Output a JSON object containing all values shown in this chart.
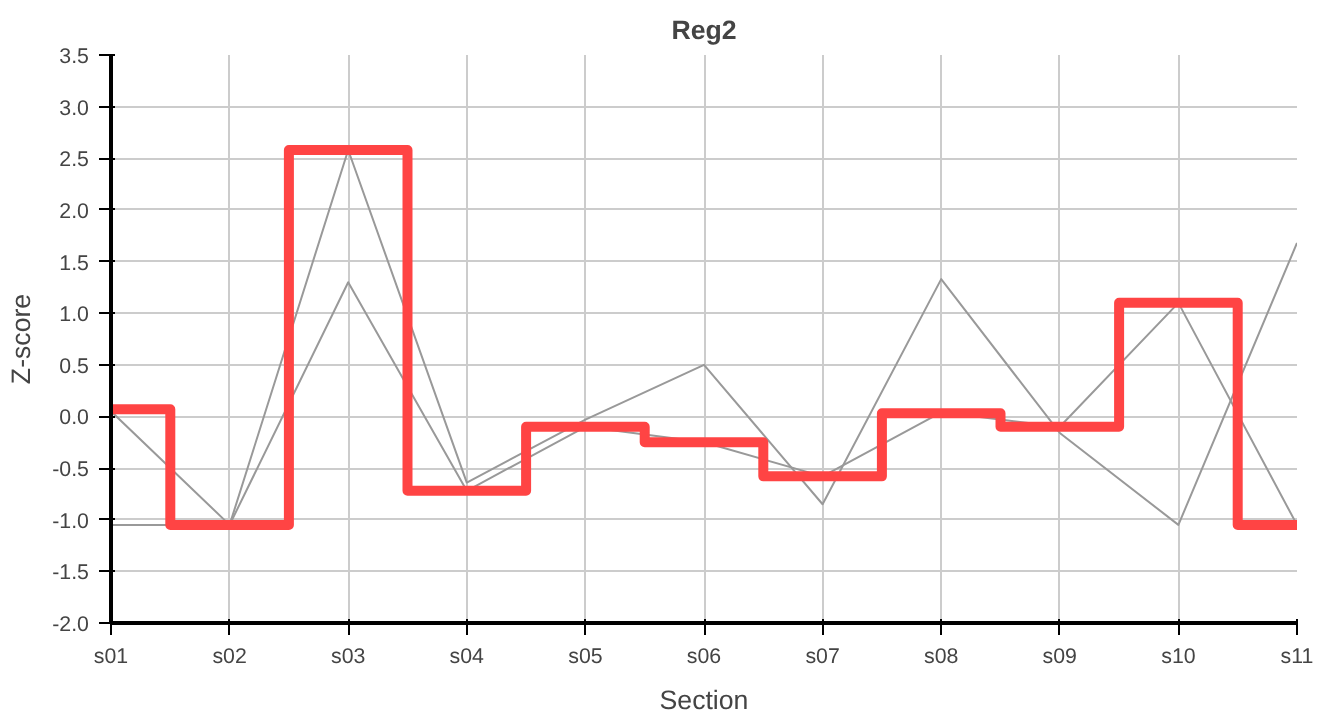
{
  "chart_data": {
    "type": "line",
    "title": "Reg2",
    "xlabel": "Section",
    "ylabel": "Z-score",
    "categories": [
      "s01",
      "s02",
      "s03",
      "s04",
      "s05",
      "s06",
      "s07",
      "s08",
      "s09",
      "s10",
      "s11"
    ],
    "series": [
      {
        "color": "#999999",
        "values": [
          0.05,
          -1.05,
          2.58,
          -0.64,
          -0.03,
          0.5,
          -0.85,
          1.33,
          -0.16,
          -1.05,
          1.68
        ]
      },
      {
        "color": "#999999",
        "values": [
          -1.05,
          -1.05,
          1.3,
          -0.72,
          -0.1,
          -0.25,
          -0.58,
          0.04,
          -0.1,
          1.1,
          -1.05
        ]
      },
      {
        "type": "step",
        "color": "#ff4444",
        "values": [
          0.07,
          -1.05,
          2.58,
          -0.72,
          -0.1,
          -0.25,
          -0.58,
          0.03,
          -0.1,
          1.1,
          -1.05
        ]
      }
    ],
    "ylim": [
      -2.0,
      3.5
    ],
    "yticks": [
      {
        "value": -2.0,
        "label": "-2.0"
      },
      -1.5,
      {
        "value": -1.0,
        "label": "-1.0"
      },
      -0.5,
      {
        "value": 0.0,
        "label": "0.0"
      },
      0.5,
      {
        "value": 1.0,
        "label": "1.0"
      },
      1.5,
      {
        "value": 2.0,
        "label": "2.0"
      },
      2.5,
      {
        "value": 3.0,
        "label": "3.0"
      },
      3.5
    ],
    "grid": true,
    "marker": "none",
    "line_style": "solid"
  }
}
